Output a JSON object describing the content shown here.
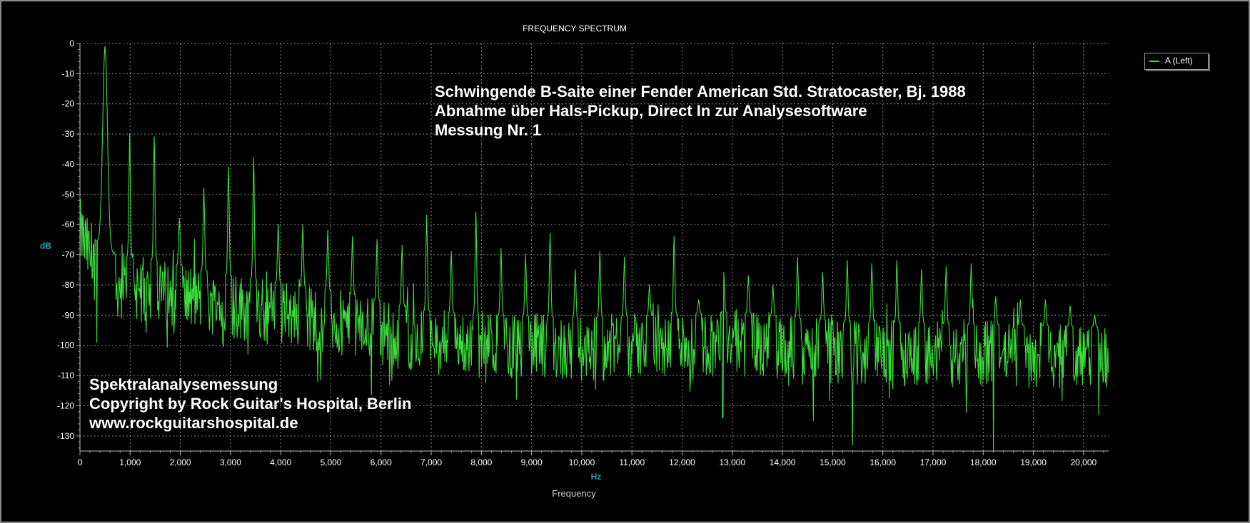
{
  "chart_data": {
    "type": "line",
    "title": "FREQUENCY SPECTRUM",
    "xlabel": "Frequency",
    "xunit": "Hz",
    "ylabel": "dB",
    "xlim": [
      0,
      20500
    ],
    "ylim": [
      -135,
      0
    ],
    "xticks": [
      0,
      1000,
      2000,
      3000,
      4000,
      5000,
      6000,
      7000,
      8000,
      9000,
      10000,
      11000,
      12000,
      13000,
      14000,
      15000,
      16000,
      17000,
      18000,
      19000,
      20000
    ],
    "xtick_labels": [
      "0",
      "1,000",
      "2,000",
      "3,000",
      "4,000",
      "5,000",
      "6,000",
      "7,000",
      "8,000",
      "9,000",
      "10,000",
      "11,000",
      "12,000",
      "13,000",
      "14,000",
      "15,000",
      "16,000",
      "17,000",
      "18,000",
      "19,000",
      "20,000"
    ],
    "yticks": [
      0,
      -10,
      -20,
      -30,
      -40,
      -50,
      -60,
      -70,
      -80,
      -90,
      -100,
      -110,
      -120,
      -130
    ],
    "ytick_labels": [
      "0",
      "-10",
      "-20",
      "-30",
      "-40",
      "-50",
      "-60",
      "-70",
      "-80",
      "-90",
      "-100",
      "-110",
      "-120",
      "-130"
    ],
    "grid": true,
    "legend_position": "top-right",
    "series": [
      {
        "name": "A (Left)",
        "color": "#3cdc3c",
        "peaks": [
          {
            "x": 500,
            "y": -1
          },
          {
            "x": 990,
            "y": -30
          },
          {
            "x": 1480,
            "y": -31
          },
          {
            "x": 1980,
            "y": -58
          },
          {
            "x": 2470,
            "y": -48
          },
          {
            "x": 2960,
            "y": -41
          },
          {
            "x": 3460,
            "y": -38
          },
          {
            "x": 3950,
            "y": -60
          },
          {
            "x": 4440,
            "y": -60
          },
          {
            "x": 4940,
            "y": -62
          },
          {
            "x": 5430,
            "y": -64
          },
          {
            "x": 5920,
            "y": -65
          },
          {
            "x": 6420,
            "y": -67
          },
          {
            "x": 6910,
            "y": -57
          },
          {
            "x": 7400,
            "y": -69
          },
          {
            "x": 7890,
            "y": -56
          },
          {
            "x": 8390,
            "y": -68
          },
          {
            "x": 8880,
            "y": -70
          },
          {
            "x": 9370,
            "y": -63
          },
          {
            "x": 9870,
            "y": -75
          },
          {
            "x": 10360,
            "y": -69
          },
          {
            "x": 10850,
            "y": -71
          },
          {
            "x": 11350,
            "y": -80
          },
          {
            "x": 11840,
            "y": -64
          },
          {
            "x": 12330,
            "y": -85
          },
          {
            "x": 12830,
            "y": -76
          },
          {
            "x": 13320,
            "y": -77
          },
          {
            "x": 13810,
            "y": -80
          },
          {
            "x": 14300,
            "y": -71
          },
          {
            "x": 14800,
            "y": -76
          },
          {
            "x": 15290,
            "y": -72
          },
          {
            "x": 15780,
            "y": -73
          },
          {
            "x": 16280,
            "y": -72
          },
          {
            "x": 16770,
            "y": -75
          },
          {
            "x": 17260,
            "y": -74
          },
          {
            "x": 17760,
            "y": -73
          },
          {
            "x": 18250,
            "y": -84
          },
          {
            "x": 18740,
            "y": -85
          },
          {
            "x": 19240,
            "y": -85
          },
          {
            "x": 19730,
            "y": -87
          },
          {
            "x": 20220,
            "y": -90
          }
        ],
        "noise_floor": [
          {
            "x": 0,
            "y": -62
          },
          {
            "x": 300,
            "y": -75
          },
          {
            "x": 700,
            "y": -80
          },
          {
            "x": 1500,
            "y": -82
          },
          {
            "x": 3000,
            "y": -87
          },
          {
            "x": 5000,
            "y": -92
          },
          {
            "x": 7000,
            "y": -99
          },
          {
            "x": 10000,
            "y": -101
          },
          {
            "x": 13000,
            "y": -99
          },
          {
            "x": 15000,
            "y": -102
          },
          {
            "x": 18000,
            "y": -103
          },
          {
            "x": 20500,
            "y": -104
          }
        ],
        "min_dips": [
          {
            "x": 340,
            "y": -99
          },
          {
            "x": 3350,
            "y": -103
          },
          {
            "x": 12810,
            "y": -124
          },
          {
            "x": 14620,
            "y": -125
          },
          {
            "x": 15400,
            "y": -133
          },
          {
            "x": 18200,
            "y": -135
          },
          {
            "x": 20300,
            "y": -123
          }
        ]
      }
    ]
  },
  "annotations": {
    "header_lines": [
      "Schwingende B-Saite einer Fender American Std. Stratocaster, Bj. 1988",
      "Abnahme über Hals-Pickup, Direct In zur Analysesoftware",
      "Messung Nr. 1"
    ],
    "footer_lines": [
      "Spektralanalysemessung",
      "Copyright by Rock Guitar's Hospital, Berlin",
      "www.rockguitarshospital.de"
    ]
  },
  "colors": {
    "background": "#000000",
    "grid": "#8c8c8c",
    "axis_label": "#2a9fb0",
    "series": "#3cdc3c"
  }
}
